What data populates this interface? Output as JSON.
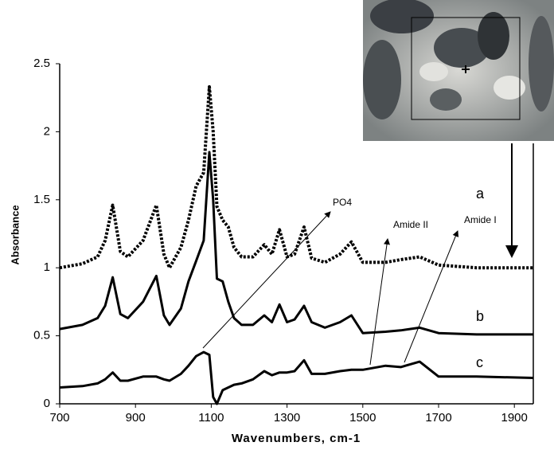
{
  "chart_data": {
    "type": "line",
    "x_label": "Wavenumbers, cm-1",
    "y_label": "Absorbance",
    "x": [
      700,
      760,
      800,
      820,
      840,
      860,
      880,
      920,
      955,
      975,
      990,
      1020,
      1040,
      1060,
      1080,
      1095,
      1105,
      1115,
      1130,
      1145,
      1160,
      1180,
      1210,
      1240,
      1260,
      1280,
      1300,
      1320,
      1345,
      1365,
      1400,
      1440,
      1470,
      1500,
      1560,
      1600,
      1650,
      1700,
      1800,
      1950
    ],
    "series": [
      {
        "name": "a",
        "color": "#000000",
        "dashed": true,
        "values": [
          1.0,
          1.03,
          1.08,
          1.2,
          1.46,
          1.12,
          1.08,
          1.2,
          1.46,
          1.1,
          1.0,
          1.15,
          1.35,
          1.6,
          1.7,
          2.33,
          2.0,
          1.45,
          1.35,
          1.3,
          1.15,
          1.08,
          1.08,
          1.17,
          1.1,
          1.28,
          1.08,
          1.1,
          1.3,
          1.07,
          1.04,
          1.1,
          1.19,
          1.04,
          1.04,
          1.06,
          1.08,
          1.02,
          1.0,
          1.0
        ]
      },
      {
        "name": "b",
        "color": "#000000",
        "dashed": false,
        "values": [
          0.55,
          0.58,
          0.63,
          0.72,
          0.93,
          0.66,
          0.63,
          0.75,
          0.94,
          0.65,
          0.58,
          0.7,
          0.9,
          1.05,
          1.2,
          1.85,
          1.5,
          0.92,
          0.9,
          0.75,
          0.63,
          0.58,
          0.58,
          0.65,
          0.6,
          0.73,
          0.6,
          0.62,
          0.72,
          0.6,
          0.56,
          0.6,
          0.65,
          0.52,
          0.53,
          0.54,
          0.56,
          0.52,
          0.51,
          0.51
        ]
      },
      {
        "name": "c",
        "color": "#000000",
        "dashed": false,
        "values": [
          0.12,
          0.13,
          0.15,
          0.18,
          0.23,
          0.17,
          0.17,
          0.2,
          0.2,
          0.18,
          0.17,
          0.22,
          0.28,
          0.35,
          0.38,
          0.36,
          0.05,
          0.0,
          0.1,
          0.12,
          0.14,
          0.15,
          0.18,
          0.24,
          0.21,
          0.23,
          0.23,
          0.24,
          0.32,
          0.22,
          0.22,
          0.24,
          0.25,
          0.25,
          0.28,
          0.27,
          0.31,
          0.2,
          0.2,
          0.19
        ]
      }
    ],
    "xlim": [
      700,
      1950
    ],
    "ylim": [
      0,
      2.5
    ],
    "xticks": [
      700,
      900,
      1100,
      1300,
      1500,
      1700,
      1900
    ],
    "yticks": [
      0,
      0.5,
      1,
      1.5,
      2,
      2.5
    ],
    "annotations": [
      {
        "text": "PO4"
      },
      {
        "text": "Amide II"
      },
      {
        "text": "Amide I"
      }
    ]
  }
}
